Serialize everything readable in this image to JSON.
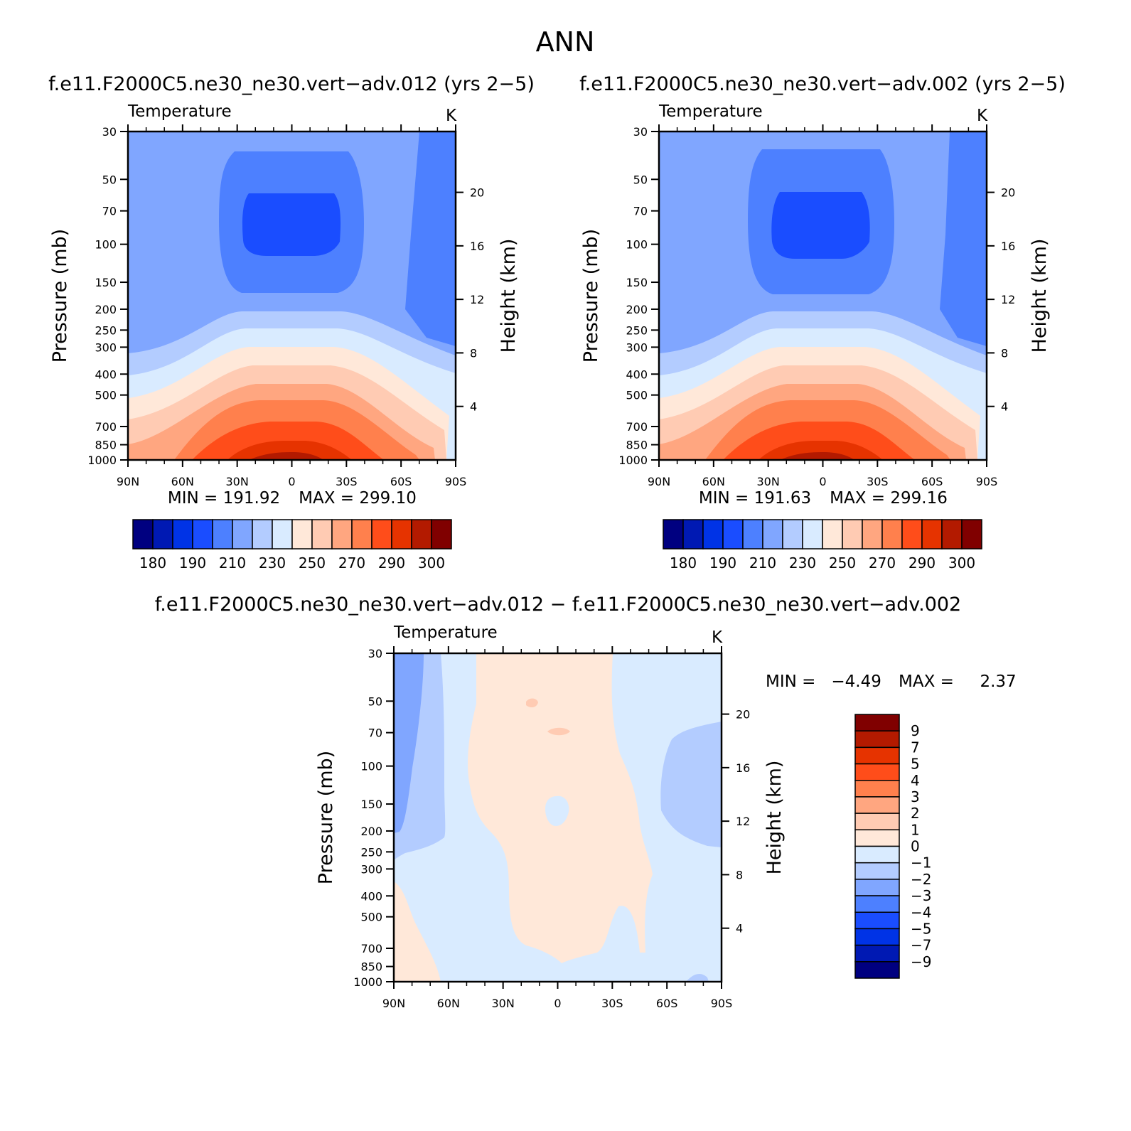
{
  "page_title": "ANN",
  "colors": {
    "temperature_scale": [
      "#000080",
      "#0019b3",
      "#0033e6",
      "#1a4dff",
      "#4d80ff",
      "#80a6ff",
      "#b3ccff",
      "#d9ebff",
      "#ffe8d9",
      "#ffcbb3",
      "#ffa680",
      "#ff804d",
      "#ff4d1a",
      "#e63300",
      "#b31a00",
      "#800000"
    ],
    "difference_scale": [
      "#000080",
      "#0019b3",
      "#0033e6",
      "#1a4dff",
      "#4d80ff",
      "#80a6ff",
      "#b3ccff",
      "#d9ebff",
      "#ffe8d9",
      "#ffcbb3",
      "#ffa680",
      "#ff804d",
      "#ff4d1a",
      "#e63300",
      "#b31a00",
      "#800000"
    ]
  },
  "chart_data": [
    {
      "type": "heatmap",
      "title": "f.e11.F2000C5.ne30_ne30.vert−adv.012 (yrs 2−5)",
      "variable": "Temperature",
      "units": "K",
      "xlabel": "",
      "ylabel": "Pressure (mb)",
      "y2label": "Height (km)",
      "x_ticks": [
        "90N",
        "60N",
        "30N",
        "0",
        "30S",
        "60S",
        "90S"
      ],
      "y_ticks": [
        "30",
        "50",
        "70",
        "100",
        "150",
        "200",
        "250",
        "300",
        "400",
        "500",
        "700",
        "850",
        "1000"
      ],
      "y2_ticks": [
        "4",
        "8",
        "12",
        "16",
        "20"
      ],
      "y_scale": "log",
      "ylim": [
        1000,
        30
      ],
      "min_label": "MIN = 191.92",
      "max_label": "MAX = 299.10",
      "min": 191.92,
      "max": 299.1,
      "colorbar_labels": [
        "180",
        "190",
        "210",
        "230",
        "250",
        "270",
        "290",
        "300"
      ]
    },
    {
      "type": "heatmap",
      "title": "f.e11.F2000C5.ne30_ne30.vert−adv.002 (yrs 2−5)",
      "variable": "Temperature",
      "units": "K",
      "xlabel": "",
      "ylabel": "Pressure (mb)",
      "y2label": "Height (km)",
      "x_ticks": [
        "90N",
        "60N",
        "30N",
        "0",
        "30S",
        "60S",
        "90S"
      ],
      "y_ticks": [
        "30",
        "50",
        "70",
        "100",
        "150",
        "200",
        "250",
        "300",
        "400",
        "500",
        "700",
        "850",
        "1000"
      ],
      "y2_ticks": [
        "4",
        "8",
        "12",
        "16",
        "20"
      ],
      "y_scale": "log",
      "ylim": [
        1000,
        30
      ],
      "min_label": "MIN = 191.63",
      "max_label": "MAX = 299.16",
      "min": 191.63,
      "max": 299.16,
      "colorbar_labels": [
        "180",
        "190",
        "210",
        "230",
        "250",
        "270",
        "290",
        "300"
      ]
    },
    {
      "type": "heatmap",
      "title": "f.e11.F2000C5.ne30_ne30.vert−adv.012 − f.e11.F2000C5.ne30_ne30.vert−adv.002",
      "variable": "Temperature",
      "units": "K",
      "xlabel": "",
      "ylabel": "Pressure (mb)",
      "y2label": "Height (km)",
      "x_ticks": [
        "90N",
        "60N",
        "30N",
        "0",
        "30S",
        "60S",
        "90S"
      ],
      "y_ticks": [
        "30",
        "50",
        "70",
        "100",
        "150",
        "200",
        "250",
        "300",
        "400",
        "500",
        "700",
        "850",
        "1000"
      ],
      "y2_ticks": [
        "4",
        "8",
        "12",
        "16",
        "20"
      ],
      "y_scale": "log",
      "ylim": [
        1000,
        30
      ],
      "min_label": "MIN =   −4.49",
      "max_label": "MAX =     2.37",
      "min": -4.49,
      "max": 2.37,
      "colorbar_labels": [
        "9",
        "7",
        "5",
        "4",
        "3",
        "2",
        "1",
        "0",
        "−1",
        "−2",
        "−3",
        "−4",
        "−5",
        "−7",
        "−9"
      ]
    }
  ]
}
